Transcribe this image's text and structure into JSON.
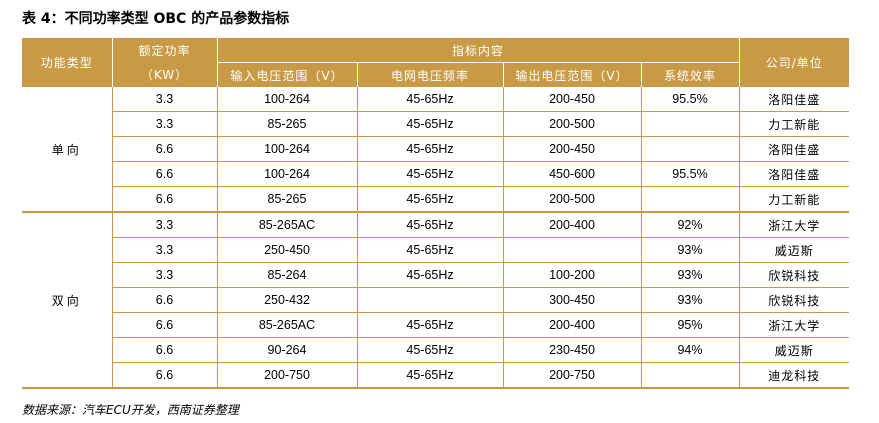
{
  "caption": "表 4：不同功率类型 OBC 的产品参数指标",
  "header": {
    "type": "功能类型",
    "power_line1": "额定功率",
    "power_line2": "（KW）",
    "spec_group": "指标内容",
    "input_voltage": "输入电压范围（V）",
    "grid_frequency": "电网电压频率",
    "output_voltage": "输出电压范围（V）",
    "efficiency": "系统效率",
    "company": "公司/单位"
  },
  "groups": [
    {
      "type": "单向",
      "rows": [
        {
          "power": "3.3",
          "input": "100-264",
          "freq": "45-65Hz",
          "output": "200-450",
          "eff": "95.5%",
          "company": "洛阳佳盛"
        },
        {
          "power": "3.3",
          "input": "85-265",
          "freq": "45-65Hz",
          "output": "200-500",
          "eff": "",
          "company": "力工新能"
        },
        {
          "power": "6.6",
          "input": "100-264",
          "freq": "45-65Hz",
          "output": "200-450",
          "eff": "",
          "company": "洛阳佳盛"
        },
        {
          "power": "6.6",
          "input": "100-264",
          "freq": "45-65Hz",
          "output": "450-600",
          "eff": "95.5%",
          "company": "洛阳佳盛"
        },
        {
          "power": "6.6",
          "input": "85-265",
          "freq": "45-65Hz",
          "output": "200-500",
          "eff": "",
          "company": "力工新能"
        }
      ]
    },
    {
      "type": "双向",
      "rows": [
        {
          "power": "3.3",
          "input": "85-265AC",
          "freq": "45-65Hz",
          "output": "200-400",
          "eff": "92%",
          "company": "浙江大学"
        },
        {
          "power": "3.3",
          "input": "250-450",
          "freq": "45-65Hz",
          "output": "",
          "eff": "93%",
          "company": "威迈斯"
        },
        {
          "power": "3.3",
          "input": "85-264",
          "freq": "45-65Hz",
          "output": "100-200",
          "eff": "93%",
          "company": "欣锐科技"
        },
        {
          "power": "6.6",
          "input": "250-432",
          "freq": "",
          "output": "300-450",
          "eff": "93%",
          "company": "欣锐科技"
        },
        {
          "power": "6.6",
          "input": "85-265AC",
          "freq": "45-65Hz",
          "output": "200-400",
          "eff": "95%",
          "company": "浙江大学"
        },
        {
          "power": "6.6",
          "input": "90-264",
          "freq": "45-65Hz",
          "output": "230-450",
          "eff": "94%",
          "company": "威迈斯"
        },
        {
          "power": "6.6",
          "input": "200-750",
          "freq": "45-65Hz",
          "output": "200-750",
          "eff": "",
          "company": "迪龙科技"
        }
      ]
    }
  ],
  "source": "数据来源：汽车ECU开发，西南证券整理"
}
